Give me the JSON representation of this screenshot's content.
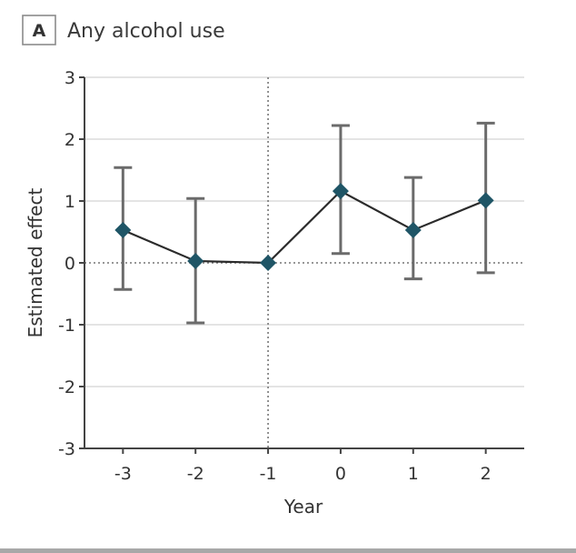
{
  "panel": {
    "letter": "A",
    "title": "Any alcohol use"
  },
  "colors": {
    "marker": "#1f5566",
    "line": "#2b2b2b",
    "errorbar": "#6b6b6b",
    "grid": "#dcdcdc"
  },
  "chart_data": {
    "type": "scatter",
    "subtype": "point-estimates-with-error-bars",
    "title": "Any alcohol use",
    "xlabel": "Year",
    "ylabel": "Estimated effect",
    "x": [
      -3,
      -2,
      -1,
      0,
      1,
      2
    ],
    "xticks": [
      "-3",
      "-2",
      "-1",
      "0",
      "1",
      "2"
    ],
    "yticks": [
      "3",
      "2",
      "1",
      "0",
      "-1",
      "-2",
      "-3"
    ],
    "xlim": [
      -3.53,
      2.53
    ],
    "ylim": [
      -3,
      3
    ],
    "grid": true,
    "reference_lines": {
      "horizontal_at": 0,
      "vertical_at": -1,
      "style": "dotted"
    },
    "series": [
      {
        "name": "Any alcohol use",
        "values": [
          0.53,
          0.03,
          0.0,
          1.16,
          0.53,
          1.01
        ],
        "lower": [
          -0.43,
          -0.97,
          null,
          0.15,
          -0.26,
          -0.16
        ],
        "upper": [
          1.54,
          1.04,
          null,
          2.22,
          1.38,
          2.26
        ],
        "marker": "diamond"
      }
    ]
  }
}
